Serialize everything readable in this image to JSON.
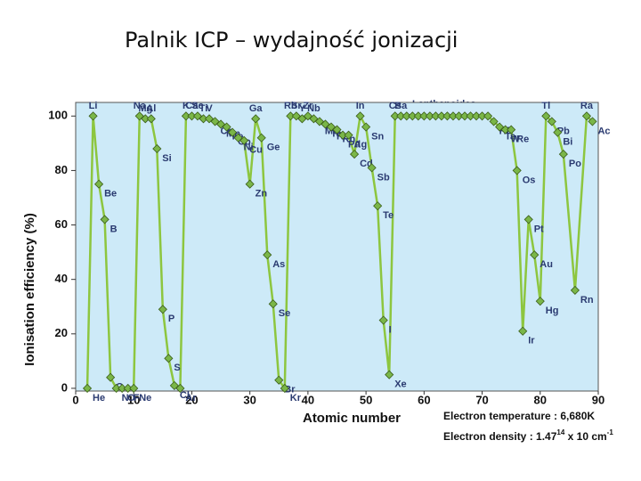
{
  "chart_data": {
    "type": "line",
    "title": "Palnik ICP – wydajność jonizacji",
    "xlabel": "Atomic number",
    "ylabel": "Ionisation efficiency (%)",
    "xlim": [
      0,
      90
    ],
    "ylim": [
      -1,
      105
    ],
    "xticks": [
      0,
      10,
      20,
      30,
      40,
      50,
      60,
      70,
      80,
      90
    ],
    "yticks": [
      0,
      20,
      40,
      60,
      80,
      100
    ],
    "x": [
      2,
      3,
      4,
      5,
      6,
      7,
      8,
      9,
      10,
      11,
      12,
      13,
      14,
      15,
      16,
      17,
      18,
      19,
      20,
      21,
      22,
      23,
      24,
      25,
      26,
      27,
      28,
      29,
      30,
      31,
      32,
      33,
      34,
      35,
      36,
      37,
      38,
      39,
      40,
      41,
      42,
      43,
      44,
      45,
      46,
      47,
      48,
      49,
      50,
      51,
      52,
      53,
      54,
      55,
      56,
      57,
      58,
      59,
      60,
      61,
      62,
      63,
      64,
      65,
      66,
      67,
      68,
      69,
      70,
      71,
      72,
      73,
      74,
      75,
      76,
      77,
      78,
      79,
      80,
      81,
      82,
      83,
      84,
      86,
      88,
      89
    ],
    "values": [
      0,
      100,
      75,
      62,
      4,
      0,
      0,
      0,
      0,
      100,
      99,
      99,
      88,
      29,
      11,
      1,
      0,
      100,
      100,
      100,
      99,
      99,
      98,
      97,
      96,
      94,
      92,
      91,
      75,
      99,
      92,
      49,
      31,
      3,
      0,
      100,
      100,
      99,
      100,
      99,
      98,
      97,
      96,
      95,
      93,
      93,
      86,
      100,
      96,
      81,
      67,
      25,
      5,
      100,
      100,
      100,
      100,
      100,
      100,
      100,
      100,
      100,
      100,
      100,
      100,
      100,
      100,
      100,
      100,
      100,
      98,
      96,
      95,
      95,
      80,
      21,
      62,
      49,
      32,
      100,
      98,
      94,
      86,
      36,
      100,
      98
    ],
    "labels": [
      "He",
      "Li",
      "Be",
      "B",
      "C",
      "N",
      "O",
      "F",
      "Ne",
      "Na",
      "Mg",
      "Al",
      "Si",
      "P",
      "S",
      "Cl",
      "Ar",
      "K",
      "Ca",
      "Sc",
      "Ti",
      "V",
      "Cr",
      "Mn",
      "Fe",
      "Co",
      "Ni",
      "Cu",
      "Zn",
      "Ga",
      "Ge",
      "As",
      "Se",
      "Br",
      "Kr",
      "Rb",
      "Sr",
      "Y",
      "Zr",
      "Nb",
      "Mo",
      "Tc",
      "Ru",
      "Rh",
      "Pd",
      "Ag",
      "Cd",
      "In",
      "Sn",
      "Sb",
      "Te",
      "I",
      "Xe",
      "Cs",
      "Ba",
      null,
      null,
      null,
      null,
      null,
      null,
      null,
      null,
      null,
      null,
      null,
      null,
      null,
      null,
      null,
      "Hf",
      "Ta",
      "W",
      "Re",
      "Os",
      "Ir",
      "Pt",
      "Au",
      "Hg",
      "Tl",
      "Pb",
      "Bi",
      "Po",
      "Rn",
      "Ra",
      "Ac"
    ],
    "line_color": "#8dc63f",
    "marker_color": "#7ab648",
    "background": "#cdeaf8",
    "annotations": [
      "Lanthanoides",
      "Electron temperature : 6,680K"
    ],
    "density_note": [
      "Electron density : 1.47",
      "14",
      " x 10 cm",
      "-1"
    ]
  }
}
